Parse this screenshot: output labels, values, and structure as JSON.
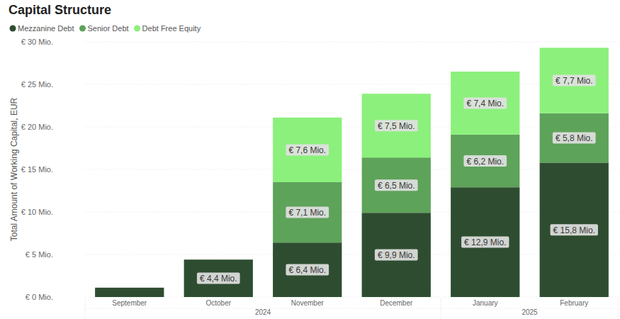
{
  "chart_data": {
    "type": "bar",
    "title": "Capital Structure",
    "y_label": "Total Amount of Working Capital, EUR",
    "categories": [
      "September",
      "October",
      "November",
      "December",
      "January",
      "February"
    ],
    "category_years": [
      "2024",
      "2024",
      "2024",
      "2024",
      "2025",
      "2025"
    ],
    "series": [
      {
        "name": "Mezzanine Debt",
        "color": "#2e4d30",
        "values": [
          1.1,
          4.4,
          6.4,
          9.9,
          12.9,
          15.8
        ],
        "value_labels": [
          null,
          "€ 4,4 Mio.",
          "€ 6,4 Mio.",
          "€ 9,9 Mio.",
          "€ 12,9 Mio.",
          "€ 15,8 Mio."
        ]
      },
      {
        "name": "Senior Debt",
        "color": "#5ea35a",
        "values": [
          null,
          null,
          7.1,
          6.5,
          6.2,
          5.8
        ],
        "value_labels": [
          null,
          null,
          "€ 7,1 Mio.",
          "€ 6,5 Mio.",
          "€ 6,2 Mio.",
          "€ 5,8 Mio."
        ]
      },
      {
        "name": "Debt Free Equity",
        "color": "#8cf07c",
        "values": [
          null,
          null,
          7.6,
          7.5,
          7.4,
          7.7
        ],
        "value_labels": [
          null,
          null,
          "€ 7,6 Mio.",
          "€ 7,5 Mio.",
          "€ 7,4 Mio.",
          "€ 7,7 Mio."
        ]
      }
    ],
    "ylim": [
      0,
      30
    ],
    "yticks": [
      {
        "value": 0,
        "label": "€ 0 Mio."
      },
      {
        "value": 5,
        "label": "€ 5 Mio."
      },
      {
        "value": 10,
        "label": "€ 10 Mio."
      },
      {
        "value": 15,
        "label": "€ 15 Mio."
      },
      {
        "value": 20,
        "label": "€ 20 Mio."
      },
      {
        "value": 25,
        "label": "€ 25 Mio."
      },
      {
        "value": 30,
        "label": "€ 30 Mio."
      }
    ],
    "stacked": true,
    "grid": true,
    "legend": "top-left",
    "data_labels": true
  }
}
